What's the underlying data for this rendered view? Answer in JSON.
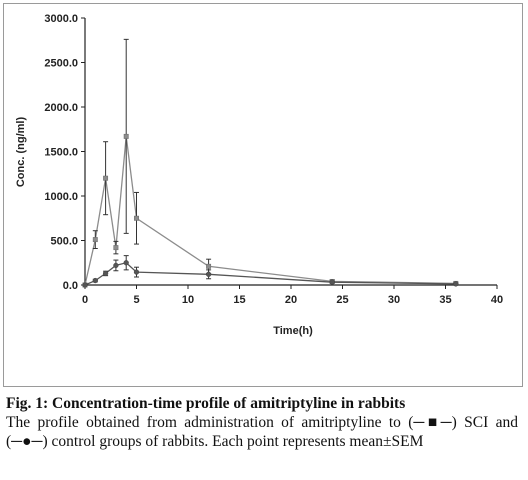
{
  "chart_data": {
    "type": "line",
    "xlabel": "Time(h)",
    "ylabel": "Conc. (ng/ml)",
    "xlim": [
      0,
      40
    ],
    "ylim": [
      0,
      3000
    ],
    "x_ticks": [
      0,
      5,
      10,
      15,
      20,
      25,
      30,
      35,
      40
    ],
    "y_ticks": [
      0,
      500,
      1000,
      1500,
      2000,
      2500,
      3000
    ],
    "x_tick_labels": [
      "0",
      "5",
      "10",
      "15",
      "20",
      "25",
      "30",
      "35",
      "40"
    ],
    "y_tick_labels": [
      "0.0",
      "500.0",
      "1000.0",
      "1500.0",
      "2000.0",
      "2500.0",
      "3000.0"
    ],
    "grid": false,
    "legend": "none",
    "series": [
      {
        "marker": "square",
        "color": "#8c8c8c",
        "x": [
          0,
          1,
          2,
          3,
          4,
          5,
          12,
          24,
          36
        ],
        "y": [
          0,
          510,
          1200,
          420,
          1670,
          750,
          210,
          40,
          18
        ],
        "err": [
          0,
          100,
          410,
          70,
          1090,
          290,
          80,
          15,
          8
        ]
      },
      {
        "marker": "circle",
        "color": "#555555",
        "x": [
          0,
          1,
          2,
          3,
          4,
          5,
          12,
          24,
          36
        ],
        "y": [
          0,
          50,
          130,
          220,
          250,
          145,
          120,
          32,
          12
        ],
        "err": [
          0,
          15,
          25,
          60,
          80,
          55,
          50,
          10,
          5
        ]
      }
    ]
  },
  "caption": {
    "title": "Fig. 1: Concentration-time profile of amitriptyline in rabbits",
    "description_pre": "The profile obtained from administration of amitriptyline to (",
    "symbol_square": "─■─",
    "description_mid": ") SCI and (",
    "symbol_circle": "─●─",
    "description_post": ") control groups of rabbits. Each point represents mean±SEM"
  }
}
